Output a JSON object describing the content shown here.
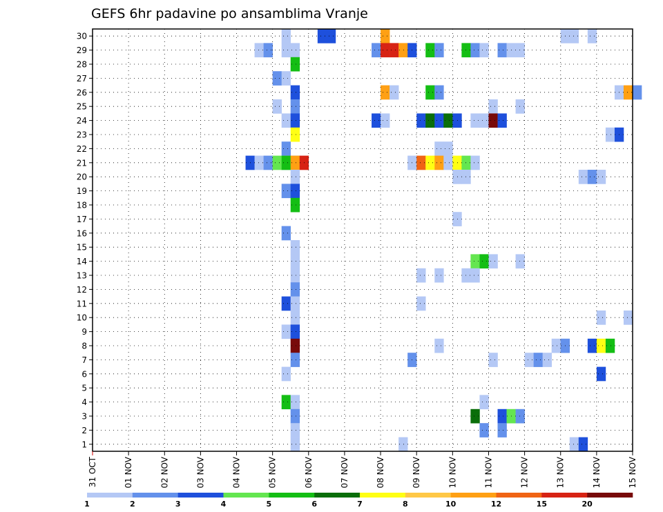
{
  "chart_data": {
    "type": "heatmap",
    "title": "GEFS 6hr padavine po ansamblima Vranje",
    "xlabel": "",
    "ylabel": "",
    "x_ticks": [
      "31 OCT",
      "01 NOV",
      "02 NOV",
      "03 NOV",
      "04 NOV",
      "05 NOV",
      "06 NOV",
      "07 NOV",
      "08 NOV",
      "09 NOV",
      "10 NOV",
      "11 NOV",
      "12 NOV",
      "13 NOV",
      "14 NOV",
      "15 NOV"
    ],
    "y_ticks": [
      "1",
      "2",
      "3",
      "4",
      "5",
      "6",
      "7",
      "8",
      "9",
      "10",
      "11",
      "12",
      "13",
      "14",
      "15",
      "16",
      "17",
      "18",
      "19",
      "20",
      "21",
      "22",
      "23",
      "24",
      "25",
      "26",
      "27",
      "28",
      "29",
      "30"
    ],
    "grid": true,
    "legend_position": "bottom",
    "legend": {
      "labels": [
        "1",
        "2",
        "3",
        "4",
        "5",
        "6",
        "7",
        "8",
        "10",
        "12",
        "15",
        "20"
      ],
      "colors": [
        "#b4c8f5",
        "#6491eb",
        "#1e50dc",
        "#64e650",
        "#14be14",
        "#0a6e0a",
        "#ffff14",
        "#ffc846",
        "#ffa014",
        "#f06414",
        "#d72314",
        "#780a0a"
      ]
    },
    "cells_note": "each cell: [member, timestep (0-based from 31 OCT 00z), level index 1-12]",
    "cells": [
      [
        30,
        21,
        1
      ],
      [
        30,
        25,
        3
      ],
      [
        30,
        26,
        3
      ],
      [
        30,
        32,
        9
      ],
      [
        30,
        52,
        1
      ],
      [
        30,
        53,
        1
      ],
      [
        30,
        55,
        1
      ],
      [
        29,
        21,
        1
      ],
      [
        29,
        22,
        1
      ],
      [
        29,
        18,
        1
      ],
      [
        29,
        19,
        2
      ],
      [
        29,
        31,
        2
      ],
      [
        29,
        32,
        11
      ],
      [
        29,
        33,
        11
      ],
      [
        29,
        34,
        9
      ],
      [
        29,
        35,
        3
      ],
      [
        29,
        37,
        5
      ],
      [
        29,
        38,
        2
      ],
      [
        29,
        41,
        5
      ],
      [
        29,
        42,
        2
      ],
      [
        29,
        43,
        1
      ],
      [
        29,
        45,
        2
      ],
      [
        29,
        46,
        1
      ],
      [
        29,
        47,
        1
      ],
      [
        28,
        22,
        5
      ],
      [
        27,
        20,
        2
      ],
      [
        27,
        21,
        1
      ],
      [
        26,
        22,
        3
      ],
      [
        26,
        32,
        9
      ],
      [
        26,
        33,
        1
      ],
      [
        26,
        37,
        5
      ],
      [
        26,
        38,
        2
      ],
      [
        26,
        58,
        1
      ],
      [
        26,
        59,
        9
      ],
      [
        26,
        60,
        2
      ],
      [
        25,
        20,
        1
      ],
      [
        25,
        22,
        2
      ],
      [
        25,
        44,
        1
      ],
      [
        25,
        47,
        1
      ],
      [
        24,
        21,
        1
      ],
      [
        24,
        22,
        3
      ],
      [
        24,
        31,
        3
      ],
      [
        24,
        32,
        1
      ],
      [
        24,
        36,
        3
      ],
      [
        24,
        37,
        6
      ],
      [
        24,
        38,
        3
      ],
      [
        24,
        39,
        6
      ],
      [
        24,
        40,
        3
      ],
      [
        24,
        42,
        1
      ],
      [
        24,
        43,
        1
      ],
      [
        24,
        44,
        12
      ],
      [
        24,
        45,
        3
      ],
      [
        23,
        22,
        7
      ],
      [
        23,
        57,
        1
      ],
      [
        23,
        58,
        3
      ],
      [
        22,
        21,
        2
      ],
      [
        22,
        38,
        1
      ],
      [
        22,
        39,
        1
      ],
      [
        21,
        21,
        1
      ],
      [
        21,
        22,
        2
      ],
      [
        21,
        17,
        3
      ],
      [
        21,
        18,
        1
      ],
      [
        21,
        19,
        2
      ],
      [
        21,
        20,
        4
      ],
      [
        21,
        21,
        5
      ],
      [
        21,
        22,
        9
      ],
      [
        21,
        23,
        11
      ],
      [
        21,
        35,
        1
      ],
      [
        21,
        36,
        10
      ],
      [
        21,
        37,
        7
      ],
      [
        21,
        38,
        9
      ],
      [
        21,
        39,
        1
      ],
      [
        21,
        40,
        7
      ],
      [
        21,
        41,
        4
      ],
      [
        21,
        42,
        1
      ],
      [
        20,
        22,
        1
      ],
      [
        20,
        40,
        1
      ],
      [
        20,
        41,
        1
      ],
      [
        20,
        54,
        1
      ],
      [
        20,
        55,
        2
      ],
      [
        20,
        56,
        1
      ],
      [
        19,
        21,
        2
      ],
      [
        19,
        22,
        3
      ],
      [
        18,
        22,
        5
      ],
      [
        17,
        40,
        1
      ],
      [
        16,
        21,
        2
      ],
      [
        15,
        22,
        1
      ],
      [
        14,
        22,
        1
      ],
      [
        14,
        42,
        4
      ],
      [
        14,
        43,
        5
      ],
      [
        14,
        44,
        1
      ],
      [
        14,
        47,
        1
      ],
      [
        13,
        22,
        1
      ],
      [
        13,
        36,
        1
      ],
      [
        13,
        38,
        1
      ],
      [
        13,
        41,
        1
      ],
      [
        13,
        42,
        1
      ],
      [
        12,
        22,
        2
      ],
      [
        11,
        21,
        3
      ],
      [
        11,
        22,
        1
      ],
      [
        11,
        36,
        1
      ],
      [
        10,
        22,
        1
      ],
      [
        10,
        56,
        1
      ],
      [
        10,
        59,
        1
      ],
      [
        9,
        21,
        1
      ],
      [
        9,
        22,
        3
      ],
      [
        8,
        22,
        12
      ],
      [
        8,
        38,
        1
      ],
      [
        8,
        51,
        1
      ],
      [
        8,
        52,
        2
      ],
      [
        8,
        55,
        3
      ],
      [
        8,
        56,
        7
      ],
      [
        8,
        57,
        5
      ],
      [
        7,
        22,
        2
      ],
      [
        7,
        35,
        2
      ],
      [
        7,
        44,
        1
      ],
      [
        7,
        48,
        1
      ],
      [
        7,
        49,
        2
      ],
      [
        7,
        50,
        1
      ],
      [
        6,
        21,
        1
      ],
      [
        6,
        56,
        3
      ],
      [
        4,
        21,
        5
      ],
      [
        4,
        22,
        1
      ],
      [
        4,
        43,
        1
      ],
      [
        3,
        22,
        2
      ],
      [
        3,
        42,
        6
      ],
      [
        3,
        45,
        3
      ],
      [
        3,
        46,
        4
      ],
      [
        3,
        47,
        2
      ],
      [
        2,
        22,
        1
      ],
      [
        2,
        43,
        2
      ],
      [
        2,
        45,
        2
      ],
      [
        1,
        22,
        1
      ],
      [
        1,
        34,
        1
      ],
      [
        1,
        53,
        1
      ],
      [
        1,
        54,
        3
      ]
    ]
  }
}
